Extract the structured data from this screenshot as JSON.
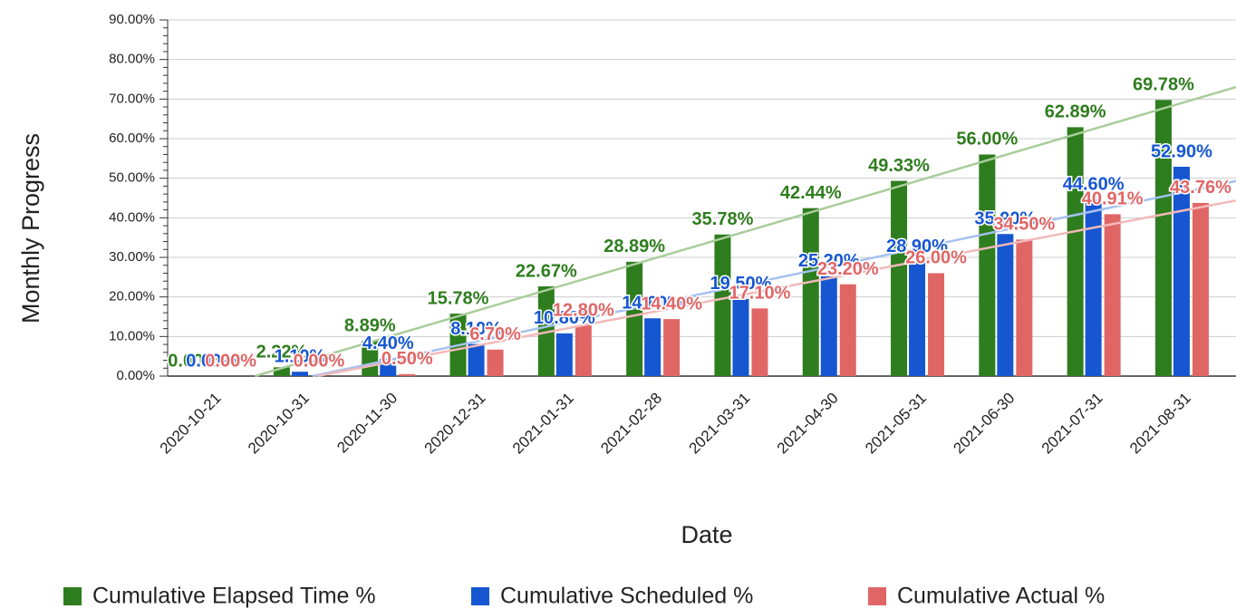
{
  "chart_data": {
    "type": "bar",
    "x_label": "Date",
    "y_label": "Monthly Progress",
    "categories": [
      "2020-10-21",
      "2020-10-31",
      "2020-11-30",
      "2020-12-31",
      "2021-01-31",
      "2021-02-28",
      "2021-03-31",
      "2021-04-30",
      "2021-05-31",
      "2021-06-30",
      "2021-07-31",
      "2021-08-31"
    ],
    "series": [
      {
        "name": "Cumulative Elapsed Time %",
        "color": "#2e7d1e",
        "trend_color": "#a9cd9b",
        "values": [
          0.0,
          2.22,
          8.89,
          15.78,
          22.67,
          28.89,
          35.78,
          42.44,
          49.33,
          56.0,
          62.89,
          69.78
        ],
        "value_labels": [
          "0.00%",
          "2.22%",
          "8.89%",
          "15.78%",
          "22.67%",
          "28.89%",
          "35.78%",
          "42.44%",
          "49.33%",
          "56.00%",
          "62.89%",
          "69.78%"
        ]
      },
      {
        "name": "Cumulative Scheduled %",
        "color": "#1656d1",
        "trend_color": "#a6c1f0",
        "values": [
          0.0,
          1.1,
          4.4,
          8.1,
          10.8,
          14.6,
          19.5,
          25.2,
          28.9,
          35.9,
          44.6,
          52.9
        ],
        "value_labels": [
          "0.00%",
          "1.10%",
          "4.40%",
          "8.10%",
          "10.80%",
          "14.60%",
          "19.50%",
          "25.20%",
          "28.90%",
          "35.90%",
          "44.60%",
          "52.90%"
        ]
      },
      {
        "name": "Cumulative Actual %",
        "color": "#e06666",
        "trend_color": "#f2b9b9",
        "values": [
          0.0,
          0.0,
          0.5,
          6.7,
          12.8,
          14.4,
          17.1,
          23.2,
          26.0,
          34.5,
          40.91,
          43.76
        ],
        "value_labels": [
          "0.00%",
          "0.00%",
          "0.50%",
          "6.70%",
          "12.80%",
          "14.40%",
          "17.10%",
          "23.20%",
          "26.00%",
          "34.50%",
          "40.91%",
          "43.76%"
        ]
      }
    ],
    "ylim": [
      0,
      90
    ],
    "yticks": [
      {
        "value": 0,
        "label": "0.00%"
      },
      {
        "value": 10,
        "label": "10.00%"
      },
      {
        "value": 20,
        "label": "20.00%"
      },
      {
        "value": 30,
        "label": "30.00%"
      },
      {
        "value": 40,
        "label": "40.00%"
      },
      {
        "value": 50,
        "label": "50.00%"
      },
      {
        "value": 60,
        "label": "60.00%"
      },
      {
        "value": 70,
        "label": "70.00%"
      },
      {
        "value": 80,
        "label": "80.00%"
      },
      {
        "value": 90,
        "label": "90.00%"
      }
    ],
    "grid": true,
    "trendline": true,
    "legend": "bottom"
  }
}
